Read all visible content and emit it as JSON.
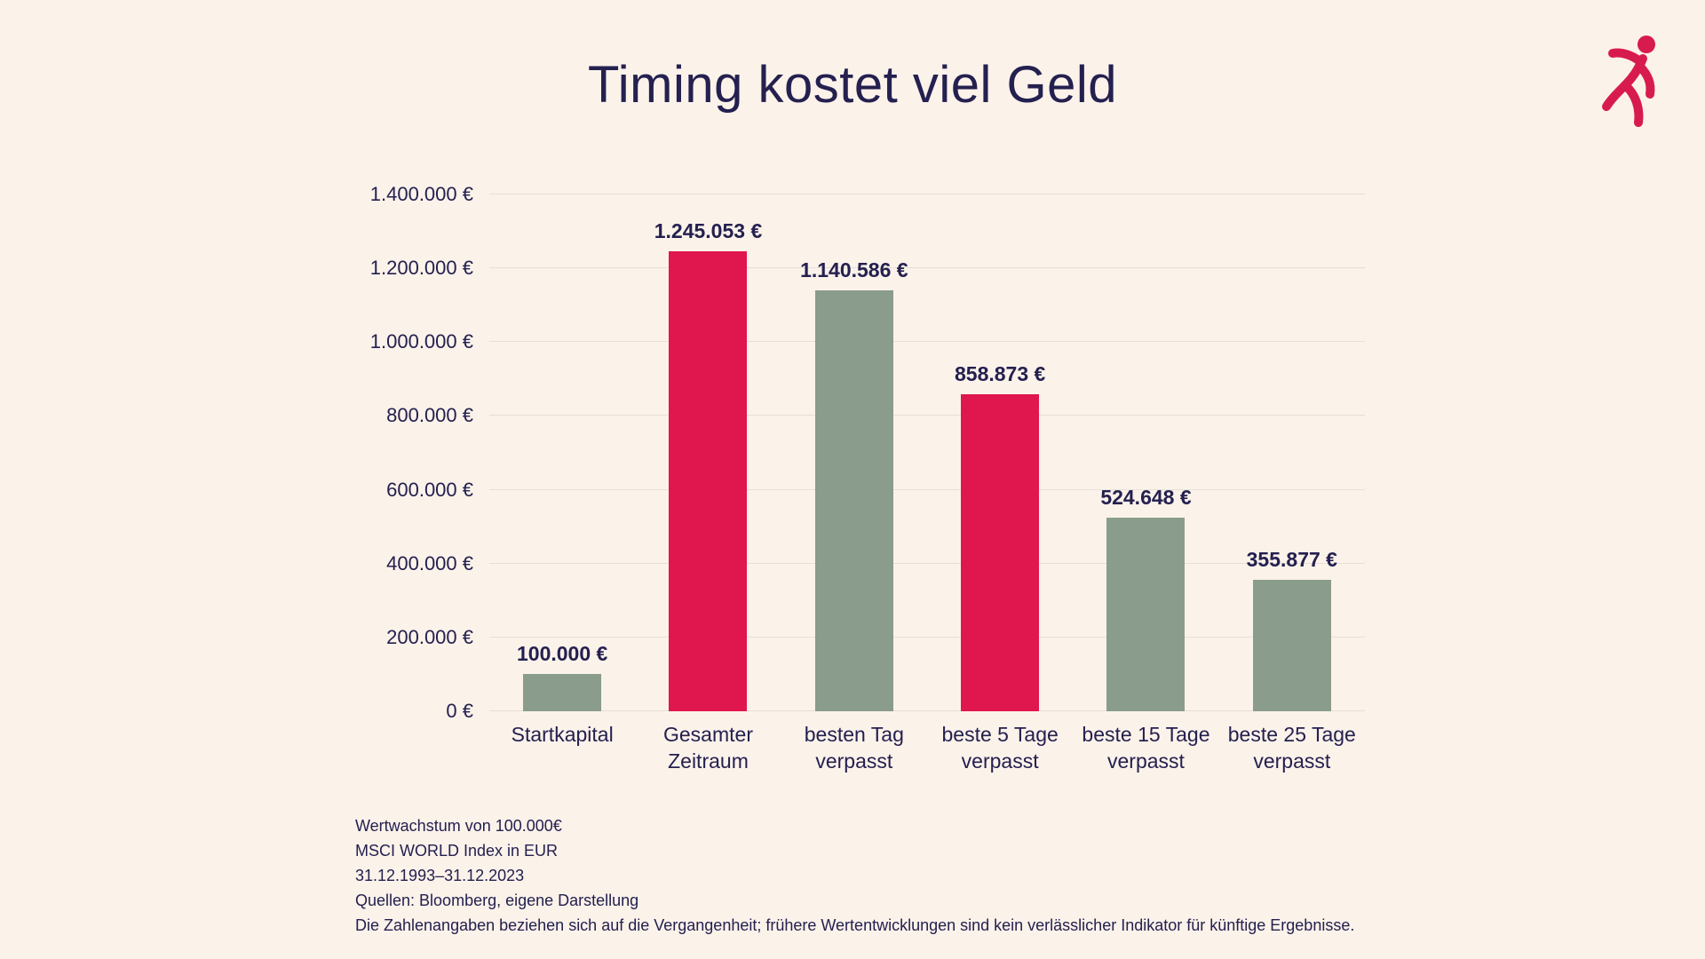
{
  "colors": {
    "background": "#fbf2ea",
    "text": "#24204f",
    "bar_green": "#8a9c8b",
    "bar_red": "#e0164f",
    "gridline": "#e6e0d8",
    "logo_red": "#d81b4e"
  },
  "chart_data": {
    "type": "bar",
    "title": "Timing kostet viel Geld",
    "categories": [
      "Startkapital",
      "Gesamter Zeitraum",
      "besten Tag verpasst",
      "beste 5 Tage verpasst",
      "beste 15 Tage verpasst",
      "beste 25 Tage verpasst"
    ],
    "values": [
      100000,
      1245053,
      1140586,
      858873,
      524648,
      355877
    ],
    "value_labels": [
      "100.000 €",
      "1.245.053 €",
      "1.140.586 €",
      "858.873 €",
      "524.648 €",
      "355.877 €"
    ],
    "bar_colors": [
      "#8a9c8b",
      "#e0164f",
      "#8a9c8b",
      "#e0164f",
      "#8a9c8b",
      "#8a9c8b"
    ],
    "xlabel": "",
    "ylabel": "",
    "ylim": [
      0,
      1400000
    ],
    "ytick_interval": 200000,
    "ytick_labels": [
      "0 €",
      "200.000 €",
      "400.000 €",
      "600.000 €",
      "800.000 €",
      "1.000.000 €",
      "1.200.000 €",
      "1.400.000 €"
    ],
    "grid": true,
    "legend": "none"
  },
  "footnotes": [
    "Wertwachstum von 100.000€",
    "MSCI WORLD Index in EUR",
    "31.12.1993–31.12.2023",
    "Quellen: Bloomberg, eigene Darstellung",
    "Die Zahlenangaben beziehen sich auf die Vergangenheit; frühere Wertentwicklungen sind kein verlässlicher Indikator für künftige Ergebnisse."
  ]
}
